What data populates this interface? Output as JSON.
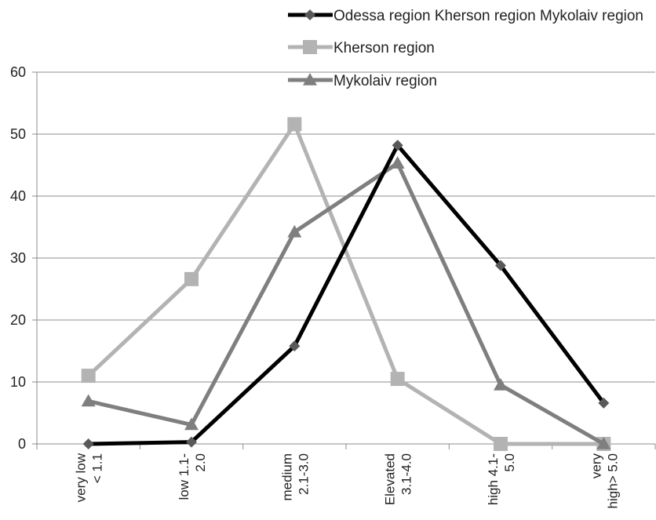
{
  "chart_data": {
    "type": "line",
    "title": "",
    "xlabel": "",
    "ylabel": "",
    "ylim": [
      0,
      60
    ],
    "yticks": [
      "0",
      "10",
      "20",
      "30",
      "40",
      "50",
      "60"
    ],
    "grid": true,
    "legend_position": "top-right",
    "categories": [
      [
        "very low",
        "< 1.1"
      ],
      [
        "low 1.1-",
        "2.0"
      ],
      [
        "medium",
        "2.1-3.0"
      ],
      [
        "Elevated",
        "3.1-4.0"
      ],
      [
        "high 4.1-",
        "5.0"
      ],
      [
        "very",
        "high> 5.0"
      ]
    ],
    "series": [
      {
        "name": "Odessa region Kherson region Mykolaiv region",
        "color": "#000000",
        "marker": "diamond",
        "values": [
          0,
          0.3,
          15.8,
          48.2,
          28.8,
          6.6
        ]
      },
      {
        "name": "Kherson region",
        "color": "#b3b3b3",
        "marker": "square",
        "values": [
          11,
          26.6,
          51.6,
          10.5,
          0,
          0
        ]
      },
      {
        "name": "Mykolaiv region",
        "color": "#7f7f7f",
        "marker": "triangle",
        "values": [
          6.9,
          3.1,
          34.2,
          45.3,
          9.5,
          0
        ]
      }
    ]
  }
}
